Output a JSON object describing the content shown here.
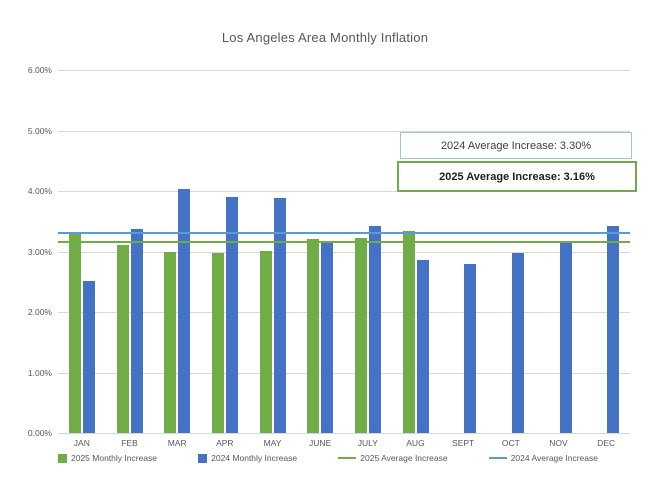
{
  "chart_data": {
    "type": "bar",
    "title": "Los Angeles Area Monthly Inflation",
    "categories": [
      "JAN",
      "FEB",
      "MAR",
      "APR",
      "MAY",
      "JUNE",
      "JULY",
      "AUG",
      "SEPT",
      "OCT",
      "NOV",
      "DEC"
    ],
    "series": [
      {
        "name": "2025 Monthly Increase",
        "type": "bar",
        "color": "#70AD47",
        "values": [
          3.32,
          3.1,
          3.0,
          2.98,
          3.01,
          3.2,
          3.22,
          3.34,
          null,
          null,
          null,
          null
        ]
      },
      {
        "name": "2024 Monthly Increase",
        "type": "bar",
        "color": "#4472C4",
        "values": [
          2.52,
          3.37,
          4.03,
          3.9,
          3.88,
          3.17,
          3.42,
          2.86,
          2.8,
          2.97,
          3.16,
          3.42
        ]
      },
      {
        "name": "2025 Average Increase",
        "type": "line",
        "color": "#70AD47",
        "value": 3.16
      },
      {
        "name": "2024 Average Increase",
        "type": "line",
        "color": "#5B9BD5",
        "value": 3.3
      }
    ],
    "ylim": [
      0,
      6
    ],
    "yticks": [
      {
        "value": 0,
        "label": "0.00%"
      },
      {
        "value": 1,
        "label": "1.00%"
      },
      {
        "value": 2,
        "label": "2.00%"
      },
      {
        "value": 3,
        "label": "3.00%"
      },
      {
        "value": 4,
        "label": "4.00%"
      },
      {
        "value": 5,
        "label": "5.00%"
      },
      {
        "value": 6,
        "label": "6.00%"
      }
    ],
    "grid": true,
    "legend_position": "bottom",
    "unit": "percent"
  },
  "annotations": [
    {
      "text": "2024 Average Increase: 3.30%",
      "border_color": "#9DC3E6",
      "bold": false
    },
    {
      "text": "2025 Average Increase: 3.16%",
      "border_color": "#70AD47",
      "bold": true
    }
  ]
}
